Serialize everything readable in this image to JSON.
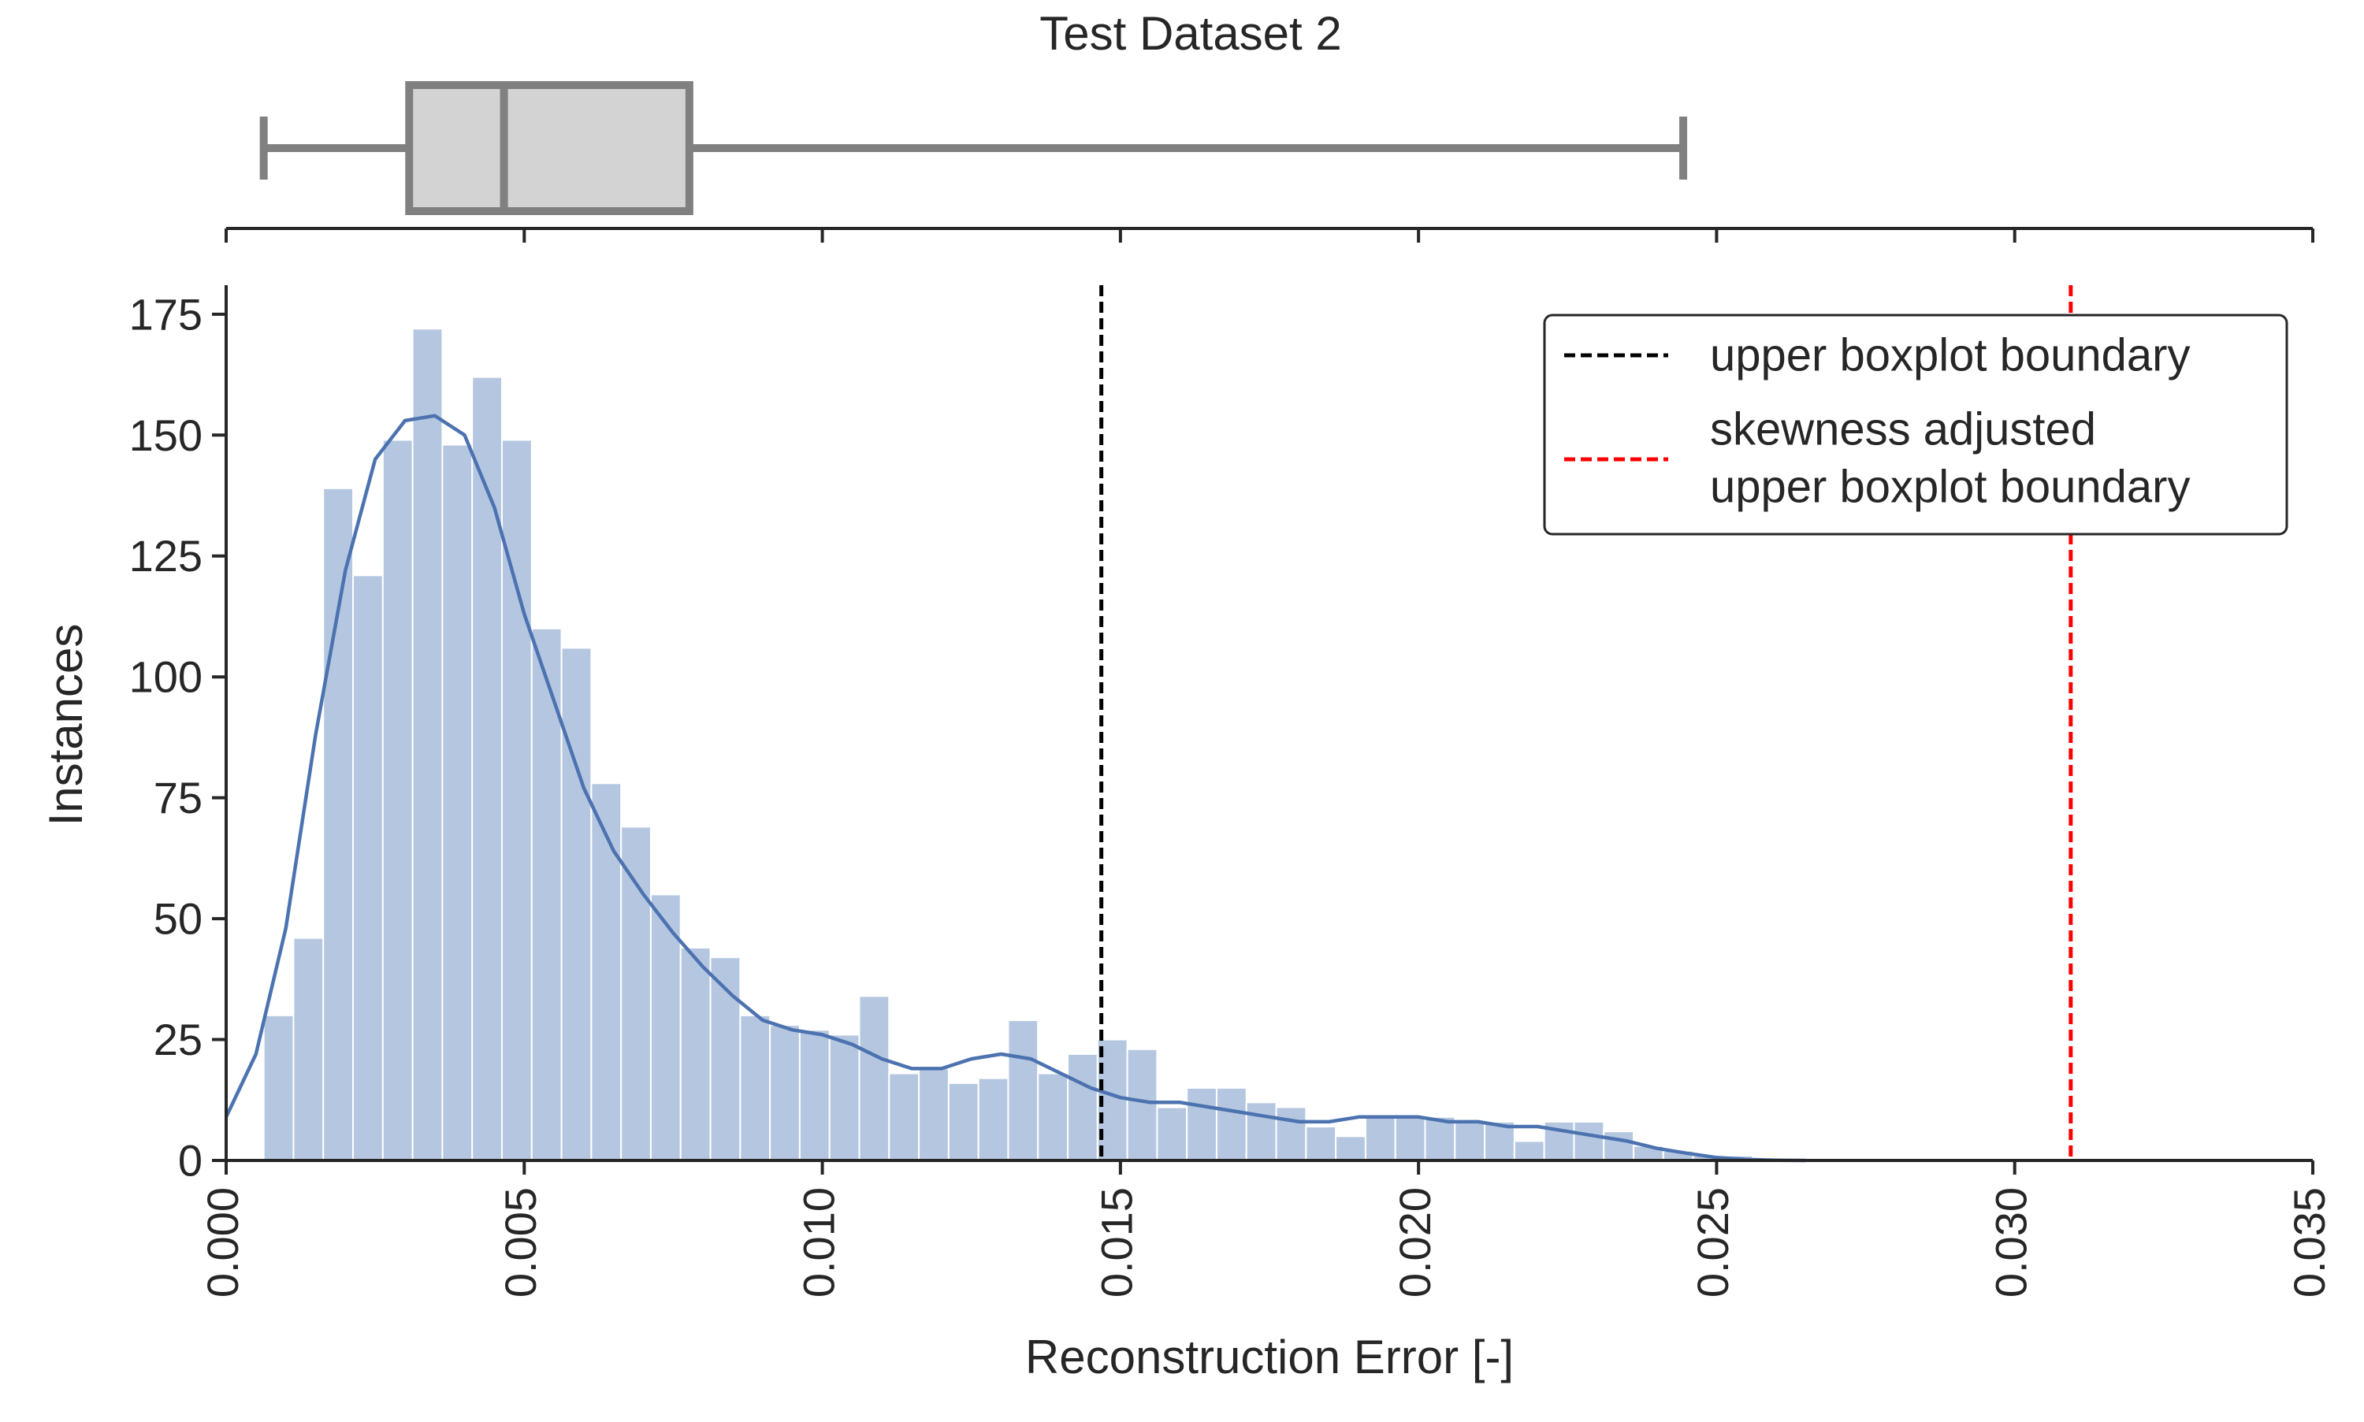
{
  "chart_data": {
    "type": "bar",
    "title": "Test Dataset 2",
    "xlabel": "Reconstruction Error [-]",
    "ylabel": "Instances",
    "xlim": [
      0.0,
      0.035
    ],
    "ylim": [
      0,
      181
    ],
    "x_ticks": [
      "0.000",
      "0.005",
      "0.010",
      "0.015",
      "0.020",
      "0.025",
      "0.030",
      "0.035"
    ],
    "y_ticks": [
      "0",
      "25",
      "50",
      "75",
      "100",
      "125",
      "150",
      "175"
    ],
    "grid": false,
    "legend_position": "top-right",
    "histogram": {
      "bin_start": 0.00063,
      "bin_width": 0.0004995,
      "counts": [
        30,
        46,
        139,
        121,
        149,
        172,
        148,
        162,
        149,
        110,
        106,
        78,
        69,
        55,
        44,
        42,
        30,
        28,
        27,
        26,
        34,
        18,
        19,
        16,
        17,
        29,
        18,
        22,
        25,
        23,
        11,
        15,
        15,
        12,
        11,
        7,
        5,
        9,
        9,
        9,
        8,
        8,
        4,
        8,
        8,
        6,
        3,
        2,
        1,
        1,
        0,
        0,
        0,
        0,
        0,
        0,
        0,
        0,
        0,
        0,
        0,
        0,
        0,
        0,
        0,
        0,
        0
      ],
      "color": "#b5c7e0"
    },
    "kde": {
      "color": "#4c72b0",
      "x": [
        0.0,
        0.0005,
        0.001,
        0.0015,
        0.002,
        0.0025,
        0.003,
        0.0035,
        0.004,
        0.0045,
        0.005,
        0.0055,
        0.006,
        0.0065,
        0.007,
        0.0075,
        0.008,
        0.0085,
        0.009,
        0.0095,
        0.01,
        0.0105,
        0.011,
        0.0115,
        0.012,
        0.0125,
        0.013,
        0.0135,
        0.014,
        0.0145,
        0.015,
        0.0155,
        0.016,
        0.0165,
        0.017,
        0.0175,
        0.018,
        0.0185,
        0.019,
        0.0195,
        0.02,
        0.0205,
        0.021,
        0.0215,
        0.022,
        0.0225,
        0.023,
        0.0235,
        0.024,
        0.0245,
        0.025,
        0.0255,
        0.026,
        0.0265
      ],
      "y": [
        9,
        22,
        48,
        88,
        122,
        145,
        153,
        154,
        150,
        135,
        113,
        95,
        77,
        64,
        55,
        47,
        40,
        34,
        29,
        27,
        26,
        24,
        21,
        19,
        19,
        21,
        22,
        21,
        18,
        15,
        13,
        12,
        12,
        11,
        10,
        9,
        8,
        8,
        9,
        9,
        9,
        8,
        8,
        7,
        7,
        6,
        5,
        4,
        2.5,
        1.5,
        0.6,
        0.2,
        0.05,
        0
      ]
    },
    "boxplot": {
      "whisker_low": 0.00063,
      "q1": 0.00307,
      "median": 0.00466,
      "q3": 0.00777,
      "whisker_high": 0.02444,
      "color": "#808080",
      "fill": "#d3d3d3"
    },
    "reference_lines": [
      {
        "x": 0.01468,
        "color": "#000000",
        "style": "dashed",
        "label_lines": [
          "upper boxplot boundary"
        ]
      },
      {
        "x": 0.03094,
        "color": "#ff0000",
        "style": "dashed",
        "label_lines": [
          "skewness adjusted",
          "upper boxplot boundary"
        ]
      }
    ]
  }
}
